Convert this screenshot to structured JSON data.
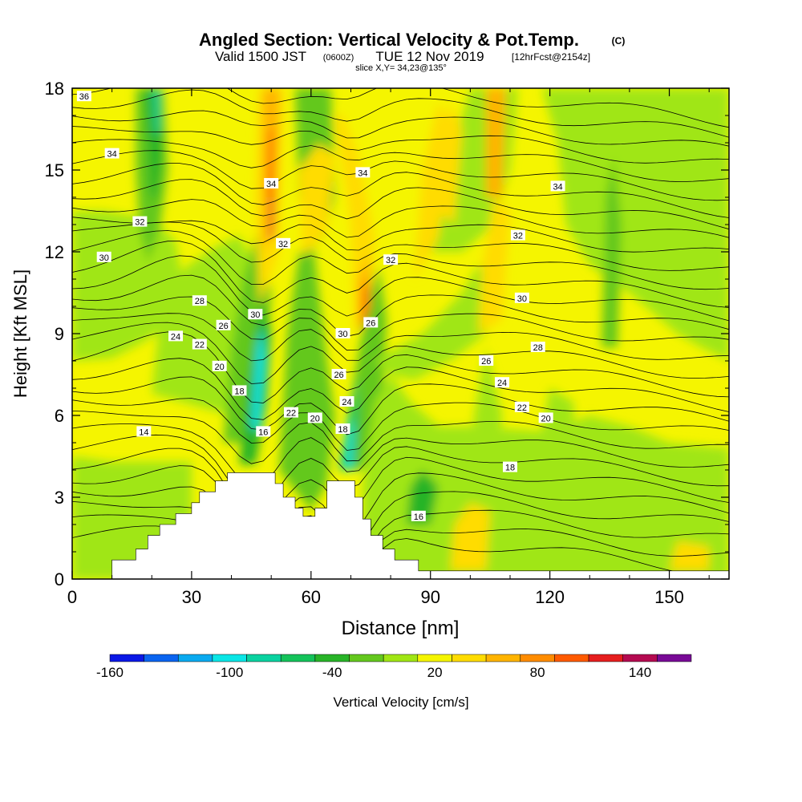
{
  "header": {
    "title": "Angled Section: Vertical Velocity & Pot.Temp.",
    "title_unit": "(C)",
    "subtitle_valid": "Valid 1500 JST",
    "subtitle_zulu": "(0600Z)",
    "subtitle_date": "TUE 12 Nov 2019",
    "subtitle_fcst": "[12hrFcst@2154z]",
    "slice": "slice X,Y= 34,23@135°"
  },
  "chart_data": {
    "type": "heatmap",
    "xlabel": "Distance [nm]",
    "ylabel": "Height [Kft MSL]",
    "xlim": [
      0,
      165
    ],
    "ylim": [
      0,
      18
    ],
    "x_ticks": [
      0,
      30,
      60,
      90,
      120,
      150
    ],
    "y_ticks": [
      0,
      3,
      6,
      9,
      12,
      15,
      18
    ],
    "grid": false,
    "colorbar": {
      "label": "Vertical Velocity [cm/s]",
      "tick_labels": [
        "-160",
        "-100",
        "-40",
        "20",
        "80",
        "140"
      ],
      "tick_values": [
        -160,
        -100,
        -40,
        20,
        80,
        140
      ],
      "bins": [
        {
          "from": -160,
          "to": -150,
          "color": "#0a18e6"
        },
        {
          "from": -150,
          "to": -130,
          "color": "#0a64f0"
        },
        {
          "from": -130,
          "to": -110,
          "color": "#0aaaf0"
        },
        {
          "from": -110,
          "to": -90,
          "color": "#0ae6e6"
        },
        {
          "from": -90,
          "to": -70,
          "color": "#0ad2a0"
        },
        {
          "from": -70,
          "to": -50,
          "color": "#14c35a"
        },
        {
          "from": -50,
          "to": -30,
          "color": "#28b428"
        },
        {
          "from": -30,
          "to": -10,
          "color": "#64c81e"
        },
        {
          "from": -10,
          "to": 10,
          "color": "#a0e614"
        },
        {
          "from": 10,
          "to": 30,
          "color": "#f5f500"
        },
        {
          "from": 30,
          "to": 50,
          "color": "#ffdc00"
        },
        {
          "from": 50,
          "to": 70,
          "color": "#ffb400"
        },
        {
          "from": 70,
          "to": 90,
          "color": "#ff8c00"
        },
        {
          "from": 90,
          "to": 110,
          "color": "#ff5a00"
        },
        {
          "from": 110,
          "to": 130,
          "color": "#e61e1e"
        },
        {
          "from": 130,
          "to": 150,
          "color": "#b40a50"
        },
        {
          "from": 150,
          "to": 160,
          "color": "#780a96"
        }
      ]
    },
    "terrain": [
      [
        0,
        0
      ],
      [
        10,
        0
      ],
      [
        10,
        0.7
      ],
      [
        16,
        0.7
      ],
      [
        16,
        1.1
      ],
      [
        19,
        1.1
      ],
      [
        19,
        1.6
      ],
      [
        22,
        1.6
      ],
      [
        22,
        2.0
      ],
      [
        26,
        2.0
      ],
      [
        26,
        2.4
      ],
      [
        30,
        2.4
      ],
      [
        30,
        2.8
      ],
      [
        32,
        2.8
      ],
      [
        32,
        3.2
      ],
      [
        36,
        3.2
      ],
      [
        36,
        3.6
      ],
      [
        39,
        3.6
      ],
      [
        39,
        3.9
      ],
      [
        42,
        3.9
      ],
      [
        42,
        3.9
      ],
      [
        51,
        3.9
      ],
      [
        51,
        3.5
      ],
      [
        53,
        3.5
      ],
      [
        53,
        3.0
      ],
      [
        56,
        3.0
      ],
      [
        56,
        2.6
      ],
      [
        58,
        2.6
      ],
      [
        58,
        2.3
      ],
      [
        61,
        2.3
      ],
      [
        61,
        2.6
      ],
      [
        64,
        2.6
      ],
      [
        64,
        3.6
      ],
      [
        71,
        3.6
      ],
      [
        71,
        3.0
      ],
      [
        73,
        3.0
      ],
      [
        73,
        2.2
      ],
      [
        75,
        2.2
      ],
      [
        75,
        1.6
      ],
      [
        78,
        1.6
      ],
      [
        78,
        1.1
      ],
      [
        81,
        1.1
      ],
      [
        81,
        0.7
      ],
      [
        87,
        0.7
      ],
      [
        87,
        0.3
      ],
      [
        165,
        0.3
      ],
      [
        165,
        0
      ]
    ],
    "contour_levels": [
      14,
      16,
      18,
      20,
      22,
      24,
      26,
      28,
      30,
      32,
      34,
      36
    ],
    "contour_labels": [
      {
        "text": "36",
        "x": 3,
        "y": 17.7
      },
      {
        "text": "34",
        "x": 10,
        "y": 15.6
      },
      {
        "text": "32",
        "x": 17,
        "y": 13.1
      },
      {
        "text": "30",
        "x": 8,
        "y": 11.8
      },
      {
        "text": "28",
        "x": 32,
        "y": 10.2
      },
      {
        "text": "26",
        "x": 38,
        "y": 9.3
      },
      {
        "text": "24",
        "x": 26,
        "y": 8.9
      },
      {
        "text": "22",
        "x": 32,
        "y": 8.6
      },
      {
        "text": "20",
        "x": 37,
        "y": 7.8
      },
      {
        "text": "18",
        "x": 42,
        "y": 6.9
      },
      {
        "text": "14",
        "x": 18,
        "y": 5.4
      },
      {
        "text": "16",
        "x": 48,
        "y": 5.4
      },
      {
        "text": "22",
        "x": 55,
        "y": 6.1
      },
      {
        "text": "20",
        "x": 61,
        "y": 5.9
      },
      {
        "text": "34",
        "x": 50,
        "y": 14.5
      },
      {
        "text": "32",
        "x": 53,
        "y": 12.3
      },
      {
        "text": "30",
        "x": 46,
        "y": 9.7
      },
      {
        "text": "34",
        "x": 73,
        "y": 14.9
      },
      {
        "text": "32",
        "x": 80,
        "y": 11.7
      },
      {
        "text": "26",
        "x": 75,
        "y": 9.4
      },
      {
        "text": "30",
        "x": 68,
        "y": 9.0
      },
      {
        "text": "26",
        "x": 67,
        "y": 7.5
      },
      {
        "text": "24",
        "x": 69,
        "y": 6.5
      },
      {
        "text": "18",
        "x": 68,
        "y": 5.5
      },
      {
        "text": "34",
        "x": 122,
        "y": 14.4
      },
      {
        "text": "32",
        "x": 112,
        "y": 12.6
      },
      {
        "text": "30",
        "x": 113,
        "y": 10.3
      },
      {
        "text": "28",
        "x": 117,
        "y": 8.5
      },
      {
        "text": "26",
        "x": 104,
        "y": 8.0
      },
      {
        "text": "24",
        "x": 108,
        "y": 7.2
      },
      {
        "text": "22",
        "x": 113,
        "y": 6.3
      },
      {
        "text": "20",
        "x": 119,
        "y": 5.9
      },
      {
        "text": "18",
        "x": 110,
        "y": 4.1
      },
      {
        "text": "16",
        "x": 87,
        "y": 2.3
      }
    ]
  }
}
